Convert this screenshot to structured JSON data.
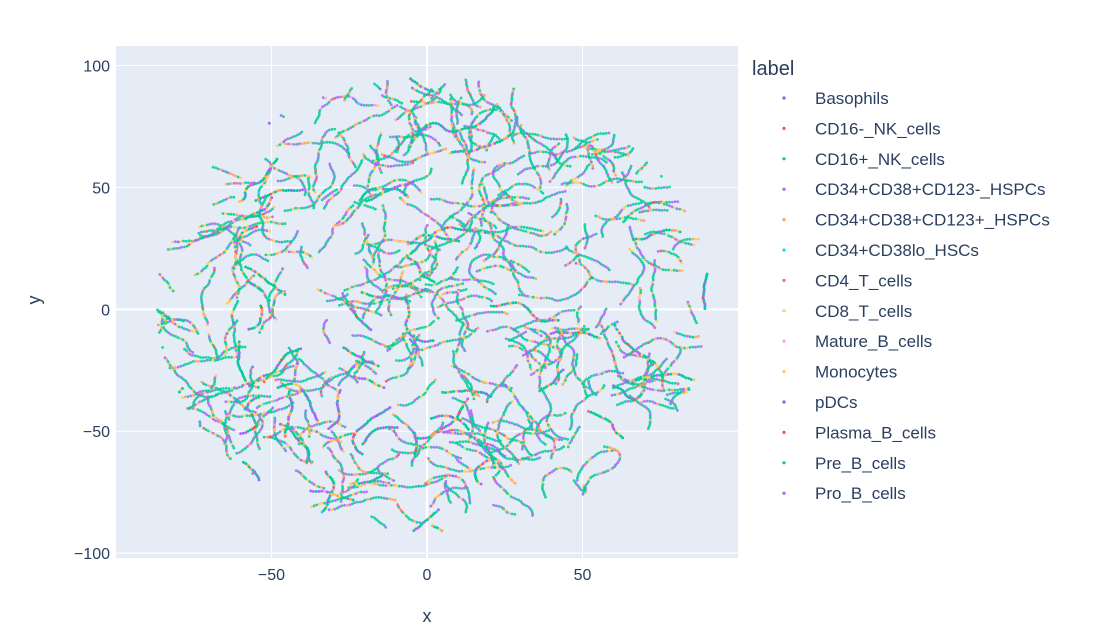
{
  "chart_data": {
    "type": "scatter",
    "xlabel": "x",
    "ylabel": "y",
    "xlim": [
      -100,
      100
    ],
    "ylim": [
      -102,
      108
    ],
    "x_ticks": [
      -50,
      0,
      50
    ],
    "x_tick_labels": [
      "−50",
      "0",
      "50"
    ],
    "y_ticks": [
      -100,
      -50,
      0,
      50,
      100
    ],
    "y_tick_labels": [
      "−100",
      "−50",
      "0",
      "50",
      "100"
    ],
    "grid": true,
    "plot_background": "#e5ecf6",
    "legend_title": "label",
    "legend_position": "right",
    "series": [
      {
        "name": "Basophils",
        "color": "#636efa"
      },
      {
        "name": "CD16-_NK_cells",
        "color": "#ef553b"
      },
      {
        "name": "CD16+_NK_cells",
        "color": "#00cc96"
      },
      {
        "name": "CD34+CD38+CD123-_HSPCs",
        "color": "#ab63fa"
      },
      {
        "name": "CD34+CD38+CD123+_HSPCs",
        "color": "#ffa15a"
      },
      {
        "name": "CD34+CD38lo_HSCs",
        "color": "#19d3f3"
      },
      {
        "name": "CD4_T_cells",
        "color": "#ff6692"
      },
      {
        "name": "CD8_T_cells",
        "color": "#b6e880"
      },
      {
        "name": "Mature_B_cells",
        "color": "#ff97ff"
      },
      {
        "name": "Monocytes",
        "color": "#fecb52"
      },
      {
        "name": "pDCs",
        "color": "#636efa"
      },
      {
        "name": "Plasma_B_cells",
        "color": "#ef553b"
      },
      {
        "name": "Pre_B_cells",
        "color": "#00cc96"
      },
      {
        "name": "Pro_B_cells",
        "color": "#ab63fa"
      }
    ],
    "point_cloud": {
      "shape": "roughly elliptical t-SNE embedding",
      "x_range": [
        -88,
        90
      ],
      "y_range": [
        -92,
        97
      ],
      "center": [
        2,
        2
      ],
      "dominant_colors": [
        "#00cc96",
        "#ab63fa",
        "#fecb52"
      ]
    }
  }
}
